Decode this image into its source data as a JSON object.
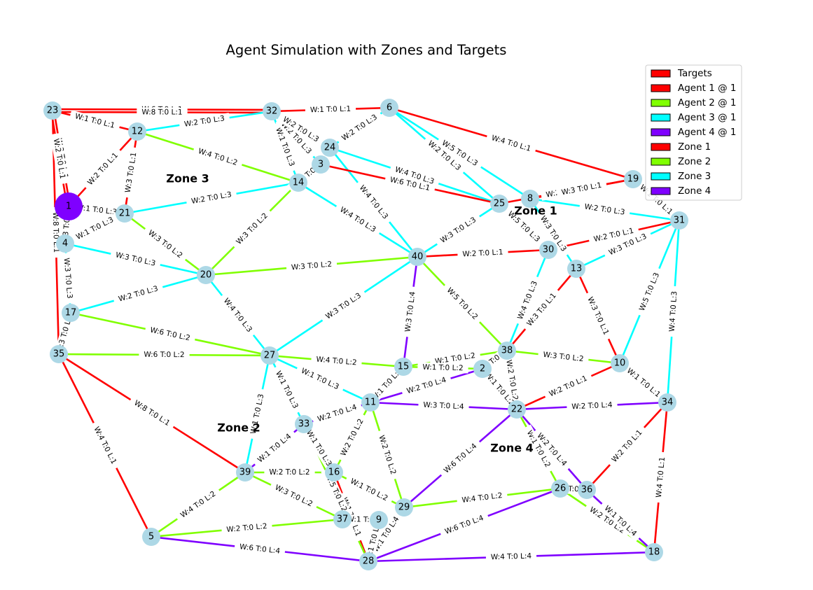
{
  "title": "Agent Simulation with Zones and Targets",
  "colors": {
    "red": "#ff0000",
    "green": "#80ff00",
    "cyan": "#00ffff",
    "purple": "#7f00ff",
    "node": "#add8e6"
  },
  "legend": [
    {
      "label": "Targets",
      "color": "red"
    },
    {
      "label": "Agent 1 @ 1",
      "color": "red"
    },
    {
      "label": "Agent 2 @ 1",
      "color": "green"
    },
    {
      "label": "Agent 3 @ 1",
      "color": "cyan"
    },
    {
      "label": "Agent 4 @ 1",
      "color": "purple"
    },
    {
      "label": "Zone 1",
      "color": "red"
    },
    {
      "label": "Zone 2",
      "color": "green"
    },
    {
      "label": "Zone 3",
      "color": "cyan"
    },
    {
      "label": "Zone 4",
      "color": "purple"
    }
  ],
  "zones": [
    "Zone 1",
    "Zone 2",
    "Zone 3",
    "Zone 4"
  ],
  "agent_markers": [
    {
      "node": "1",
      "color": "purple"
    }
  ],
  "nodes": [
    "1",
    "2",
    "3",
    "4",
    "5",
    "6",
    "8",
    "9",
    "10",
    "11",
    "12",
    "13",
    "14",
    "15",
    "16",
    "17",
    "18",
    "19",
    "20",
    "21",
    "22",
    "23",
    "24",
    "25",
    "26",
    "27",
    "28",
    "29",
    "30",
    "31",
    "32",
    "33",
    "34",
    "35",
    "36",
    "37",
    "38",
    "39",
    "40"
  ],
  "edges": [
    {
      "from": "23",
      "to": "32",
      "label": "W:6 T:0 L:1",
      "color": "red"
    },
    {
      "from": "23",
      "to": "32",
      "label": "W:8 T:0 L:1",
      "color": "red"
    },
    {
      "from": "32",
      "to": "6",
      "label": "W:1 T:0 L:1",
      "color": "red"
    },
    {
      "from": "23",
      "to": "12",
      "label": "W:1 T:0 L:1",
      "color": "red"
    },
    {
      "from": "23",
      "to": "1",
      "label": "W:2 T:0 L:1",
      "color": "red"
    },
    {
      "from": "23",
      "to": "1",
      "label": "W:2 T:0 L:1",
      "color": "red"
    },
    {
      "from": "23",
      "to": "35",
      "label": "W:8 T:0 L:1",
      "color": "red"
    },
    {
      "from": "12",
      "to": "1",
      "label": "W:2 T:0 L:1",
      "color": "red"
    },
    {
      "from": "12",
      "to": "32",
      "label": "W:2 T:0 L:3",
      "color": "cyan"
    },
    {
      "from": "12",
      "to": "14",
      "label": "W:4 T:0 L:2",
      "color": "green"
    },
    {
      "from": "12",
      "to": "21",
      "label": "W:3 T:0 L:1",
      "color": "red"
    },
    {
      "from": "1",
      "to": "21",
      "label": "W:1 T:0 L:3",
      "color": "cyan"
    },
    {
      "from": "1",
      "to": "4",
      "label": "W:3 T:0 L:1",
      "color": "cyan"
    },
    {
      "from": "21",
      "to": "4",
      "label": "W:1 T:0 L:3",
      "color": "cyan"
    },
    {
      "from": "21",
      "to": "14",
      "label": "W:2 T:0 L:3",
      "color": "cyan"
    },
    {
      "from": "21",
      "to": "20",
      "label": "W:3 T:0 L:2",
      "color": "green"
    },
    {
      "from": "4",
      "to": "20",
      "label": "W:3 T:0 L:3",
      "color": "cyan"
    },
    {
      "from": "4",
      "to": "17",
      "label": "W:3 T:0 L:3",
      "color": "cyan"
    },
    {
      "from": "17",
      "to": "20",
      "label": "W:2 T:0 L:3",
      "color": "cyan"
    },
    {
      "from": "17",
      "to": "27",
      "label": "W:6 T:0 L:2",
      "color": "green"
    },
    {
      "from": "17",
      "to": "35",
      "label": "W:3 T:0 L:1",
      "color": "cyan"
    },
    {
      "from": "35",
      "to": "27",
      "label": "W:6 T:0 L:2",
      "color": "green"
    },
    {
      "from": "35",
      "to": "39",
      "label": "W:8 T:0 L:1",
      "color": "red"
    },
    {
      "from": "35",
      "to": "5",
      "label": "W:4 T:0 L:1",
      "color": "red"
    },
    {
      "from": "32",
      "to": "14",
      "label": "W:1 T:0 L:3",
      "color": "cyan"
    },
    {
      "from": "32",
      "to": "3",
      "label": "W:2 T:0 L:3",
      "color": "cyan"
    },
    {
      "from": "32",
      "to": "24",
      "label": "W:2 T:0 L:3",
      "color": "cyan"
    },
    {
      "from": "6",
      "to": "24",
      "label": "W:2 T:0 L:3",
      "color": "cyan"
    },
    {
      "from": "6",
      "to": "19",
      "label": "W:4 T:0 L:1",
      "color": "red"
    },
    {
      "from": "6",
      "to": "25",
      "label": "W:2 T:0 L:3",
      "color": "cyan"
    },
    {
      "from": "6",
      "to": "8",
      "label": "W:5 T:0 L:3",
      "color": "cyan"
    },
    {
      "from": "24",
      "to": "25",
      "label": "W:4 T:0 L:3",
      "color": "cyan"
    },
    {
      "from": "24",
      "to": "40",
      "label": "W:4 T:0 L:3",
      "color": "cyan"
    },
    {
      "from": "3",
      "to": "25",
      "label": "W:6 T:0 L:1",
      "color": "red"
    },
    {
      "from": "3",
      "to": "14",
      "label": "W:1 T:0 L:3",
      "color": "cyan"
    },
    {
      "from": "14",
      "to": "40",
      "label": "W:4 T:0 L:3",
      "color": "cyan"
    },
    {
      "from": "14",
      "to": "20",
      "label": "W:3 T:0 L:2",
      "color": "green"
    },
    {
      "from": "20",
      "to": "40",
      "label": "W:3 T:0 L:2",
      "color": "green"
    },
    {
      "from": "20",
      "to": "27",
      "label": "W:4 T:0 L:3",
      "color": "cyan"
    },
    {
      "from": "25",
      "to": "19",
      "label": "W:2 T:0 L:1",
      "color": "red"
    },
    {
      "from": "8",
      "to": "19",
      "label": "W:3 T:0 L:1",
      "color": "red"
    },
    {
      "from": "25",
      "to": "40",
      "label": "W:3 T:0 L:3",
      "color": "cyan"
    },
    {
      "from": "25",
      "to": "30",
      "label": "W:5 T:0 L:3",
      "color": "cyan"
    },
    {
      "from": "8",
      "to": "13",
      "label": "W:3 T:0 L:3",
      "color": "cyan"
    },
    {
      "from": "8",
      "to": "31",
      "label": "W:2 T:0 L:3",
      "color": "cyan"
    },
    {
      "from": "19",
      "to": "31",
      "label": "W:1 T:0 L:1",
      "color": "cyan"
    },
    {
      "from": "40",
      "to": "30",
      "label": "W:2 T:0 L:1",
      "color": "red"
    },
    {
      "from": "30",
      "to": "31",
      "label": "W:2 T:0 L:1",
      "color": "red"
    },
    {
      "from": "13",
      "to": "31",
      "label": "W:3 T:0 L:3",
      "color": "cyan"
    },
    {
      "from": "31",
      "to": "10",
      "label": "W:5 T:0 L:3",
      "color": "cyan"
    },
    {
      "from": "31",
      "to": "34",
      "label": "W:4 T:0 L:3",
      "color": "cyan"
    },
    {
      "from": "30",
      "to": "38",
      "label": "W:4 T:0 L:3",
      "color": "cyan"
    },
    {
      "from": "13",
      "to": "38",
      "label": "W:3 T:0 L:1",
      "color": "red"
    },
    {
      "from": "13",
      "to": "10",
      "label": "W:3 T:0 L:1",
      "color": "red"
    },
    {
      "from": "40",
      "to": "38",
      "label": "W:5 T:0 L:2",
      "color": "green"
    },
    {
      "from": "40",
      "to": "15",
      "label": "W:3 T:0 L:4",
      "color": "purple"
    },
    {
      "from": "40",
      "to": "27",
      "label": "W:3 T:0 L:3",
      "color": "cyan"
    },
    {
      "from": "38",
      "to": "10",
      "label": "W:3 T:0 L:2",
      "color": "green"
    },
    {
      "from": "38",
      "to": "15",
      "label": "W:1 T:0 L:2",
      "color": "green"
    },
    {
      "from": "38",
      "to": "22",
      "label": "W:2 T:0 L:2",
      "color": "green"
    },
    {
      "from": "38",
      "to": "2",
      "label": "T:0",
      "color": "green"
    },
    {
      "from": "15",
      "to": "2",
      "label": "W:1 T:0 L:2",
      "color": "green"
    },
    {
      "from": "27",
      "to": "15",
      "label": "W:4 T:0 L:2",
      "color": "green"
    },
    {
      "from": "27",
      "to": "11",
      "label": "W:1 T:0 L:3",
      "color": "cyan"
    },
    {
      "from": "27",
      "to": "33",
      "label": "W:1 T:0 L:3",
      "color": "cyan"
    },
    {
      "from": "27",
      "to": "39",
      "label": "W:1 T:0 L:3",
      "color": "cyan"
    },
    {
      "from": "15",
      "to": "11",
      "label": "W:1 T:0 L:2",
      "color": "green"
    },
    {
      "from": "2",
      "to": "11",
      "label": "W:2 T:0 L:4",
      "color": "purple"
    },
    {
      "from": "2",
      "to": "22",
      "label": "W:1 T:0 L:2",
      "color": "green"
    },
    {
      "from": "10",
      "to": "22",
      "label": "W:2 T:0 L:1",
      "color": "red"
    },
    {
      "from": "10",
      "to": "34",
      "label": "W:1 T:0 L:1",
      "color": "red"
    },
    {
      "from": "11",
      "to": "22",
      "label": "W:3 T:0 L:4",
      "color": "purple"
    },
    {
      "from": "22",
      "to": "34",
      "label": "W:2 T:0 L:4",
      "color": "purple"
    },
    {
      "from": "11",
      "to": "33",
      "label": "W:2 T:0 L:4",
      "color": "purple"
    },
    {
      "from": "11",
      "to": "16",
      "label": "W:2 T:0 L:2",
      "color": "green"
    },
    {
      "from": "11",
      "to": "29",
      "label": "W:2 T:0 L:2",
      "color": "green"
    },
    {
      "from": "22",
      "to": "29",
      "label": "W:6 T:0 L:4",
      "color": "purple"
    },
    {
      "from": "22",
      "to": "26",
      "label": "W:1 T:0 L:2",
      "color": "green"
    },
    {
      "from": "22",
      "to": "36",
      "label": "W:2 T:0 L:4",
      "color": "purple"
    },
    {
      "from": "34",
      "to": "36",
      "label": "W:2 T:0 L:1",
      "color": "red"
    },
    {
      "from": "34",
      "to": "18",
      "label": "W:4 T:0 L:1",
      "color": "red"
    },
    {
      "from": "26",
      "to": "36",
      "label": "T:0",
      "color": "green"
    },
    {
      "from": "26",
      "to": "18",
      "label": "W:2 T:0 L:2",
      "color": "green"
    },
    {
      "from": "36",
      "to": "18",
      "label": "W:1 T:0 L:4",
      "color": "purple"
    },
    {
      "from": "33",
      "to": "39",
      "label": "W:1 T:0 L:4",
      "color": "purple"
    },
    {
      "from": "33",
      "to": "16",
      "label": "W:1 T:0 L:3",
      "color": "cyan"
    },
    {
      "from": "39",
      "to": "16",
      "label": "W:2 T:0 L:2",
      "color": "green"
    },
    {
      "from": "39",
      "to": "37",
      "label": "W:3 T:0 L:2",
      "color": "green"
    },
    {
      "from": "39",
      "to": "5",
      "label": "W:4 T:0 L:2",
      "color": "green"
    },
    {
      "from": "16",
      "to": "29",
      "label": "W:1 T:0 L:2",
      "color": "green"
    },
    {
      "from": "16",
      "to": "28",
      "label": "W:1 T:0 L:1",
      "color": "red"
    },
    {
      "from": "33",
      "to": "28",
      "label": "W:5 T:0 L:2",
      "color": "green"
    },
    {
      "from": "29",
      "to": "26",
      "label": "W:4 T:0 L:2",
      "color": "green"
    },
    {
      "from": "29",
      "to": "28",
      "label": "W:1 T:0 L:4",
      "color": "purple"
    },
    {
      "from": "37",
      "to": "9",
      "label": "W:1 T:0",
      "color": "green"
    },
    {
      "from": "5",
      "to": "37",
      "label": "W:2 T:0 L:2",
      "color": "green"
    },
    {
      "from": "5",
      "to": "28",
      "label": "W:6 T:0 L:4",
      "color": "purple"
    },
    {
      "from": "28",
      "to": "26",
      "label": "W:6 T:0 L:4",
      "color": "purple"
    },
    {
      "from": "28",
      "to": "18",
      "label": "W:4 T:0 L:4",
      "color": "purple"
    },
    {
      "from": "9",
      "to": "28",
      "label": "W:1 T:0 L:4",
      "color": "purple"
    }
  ]
}
